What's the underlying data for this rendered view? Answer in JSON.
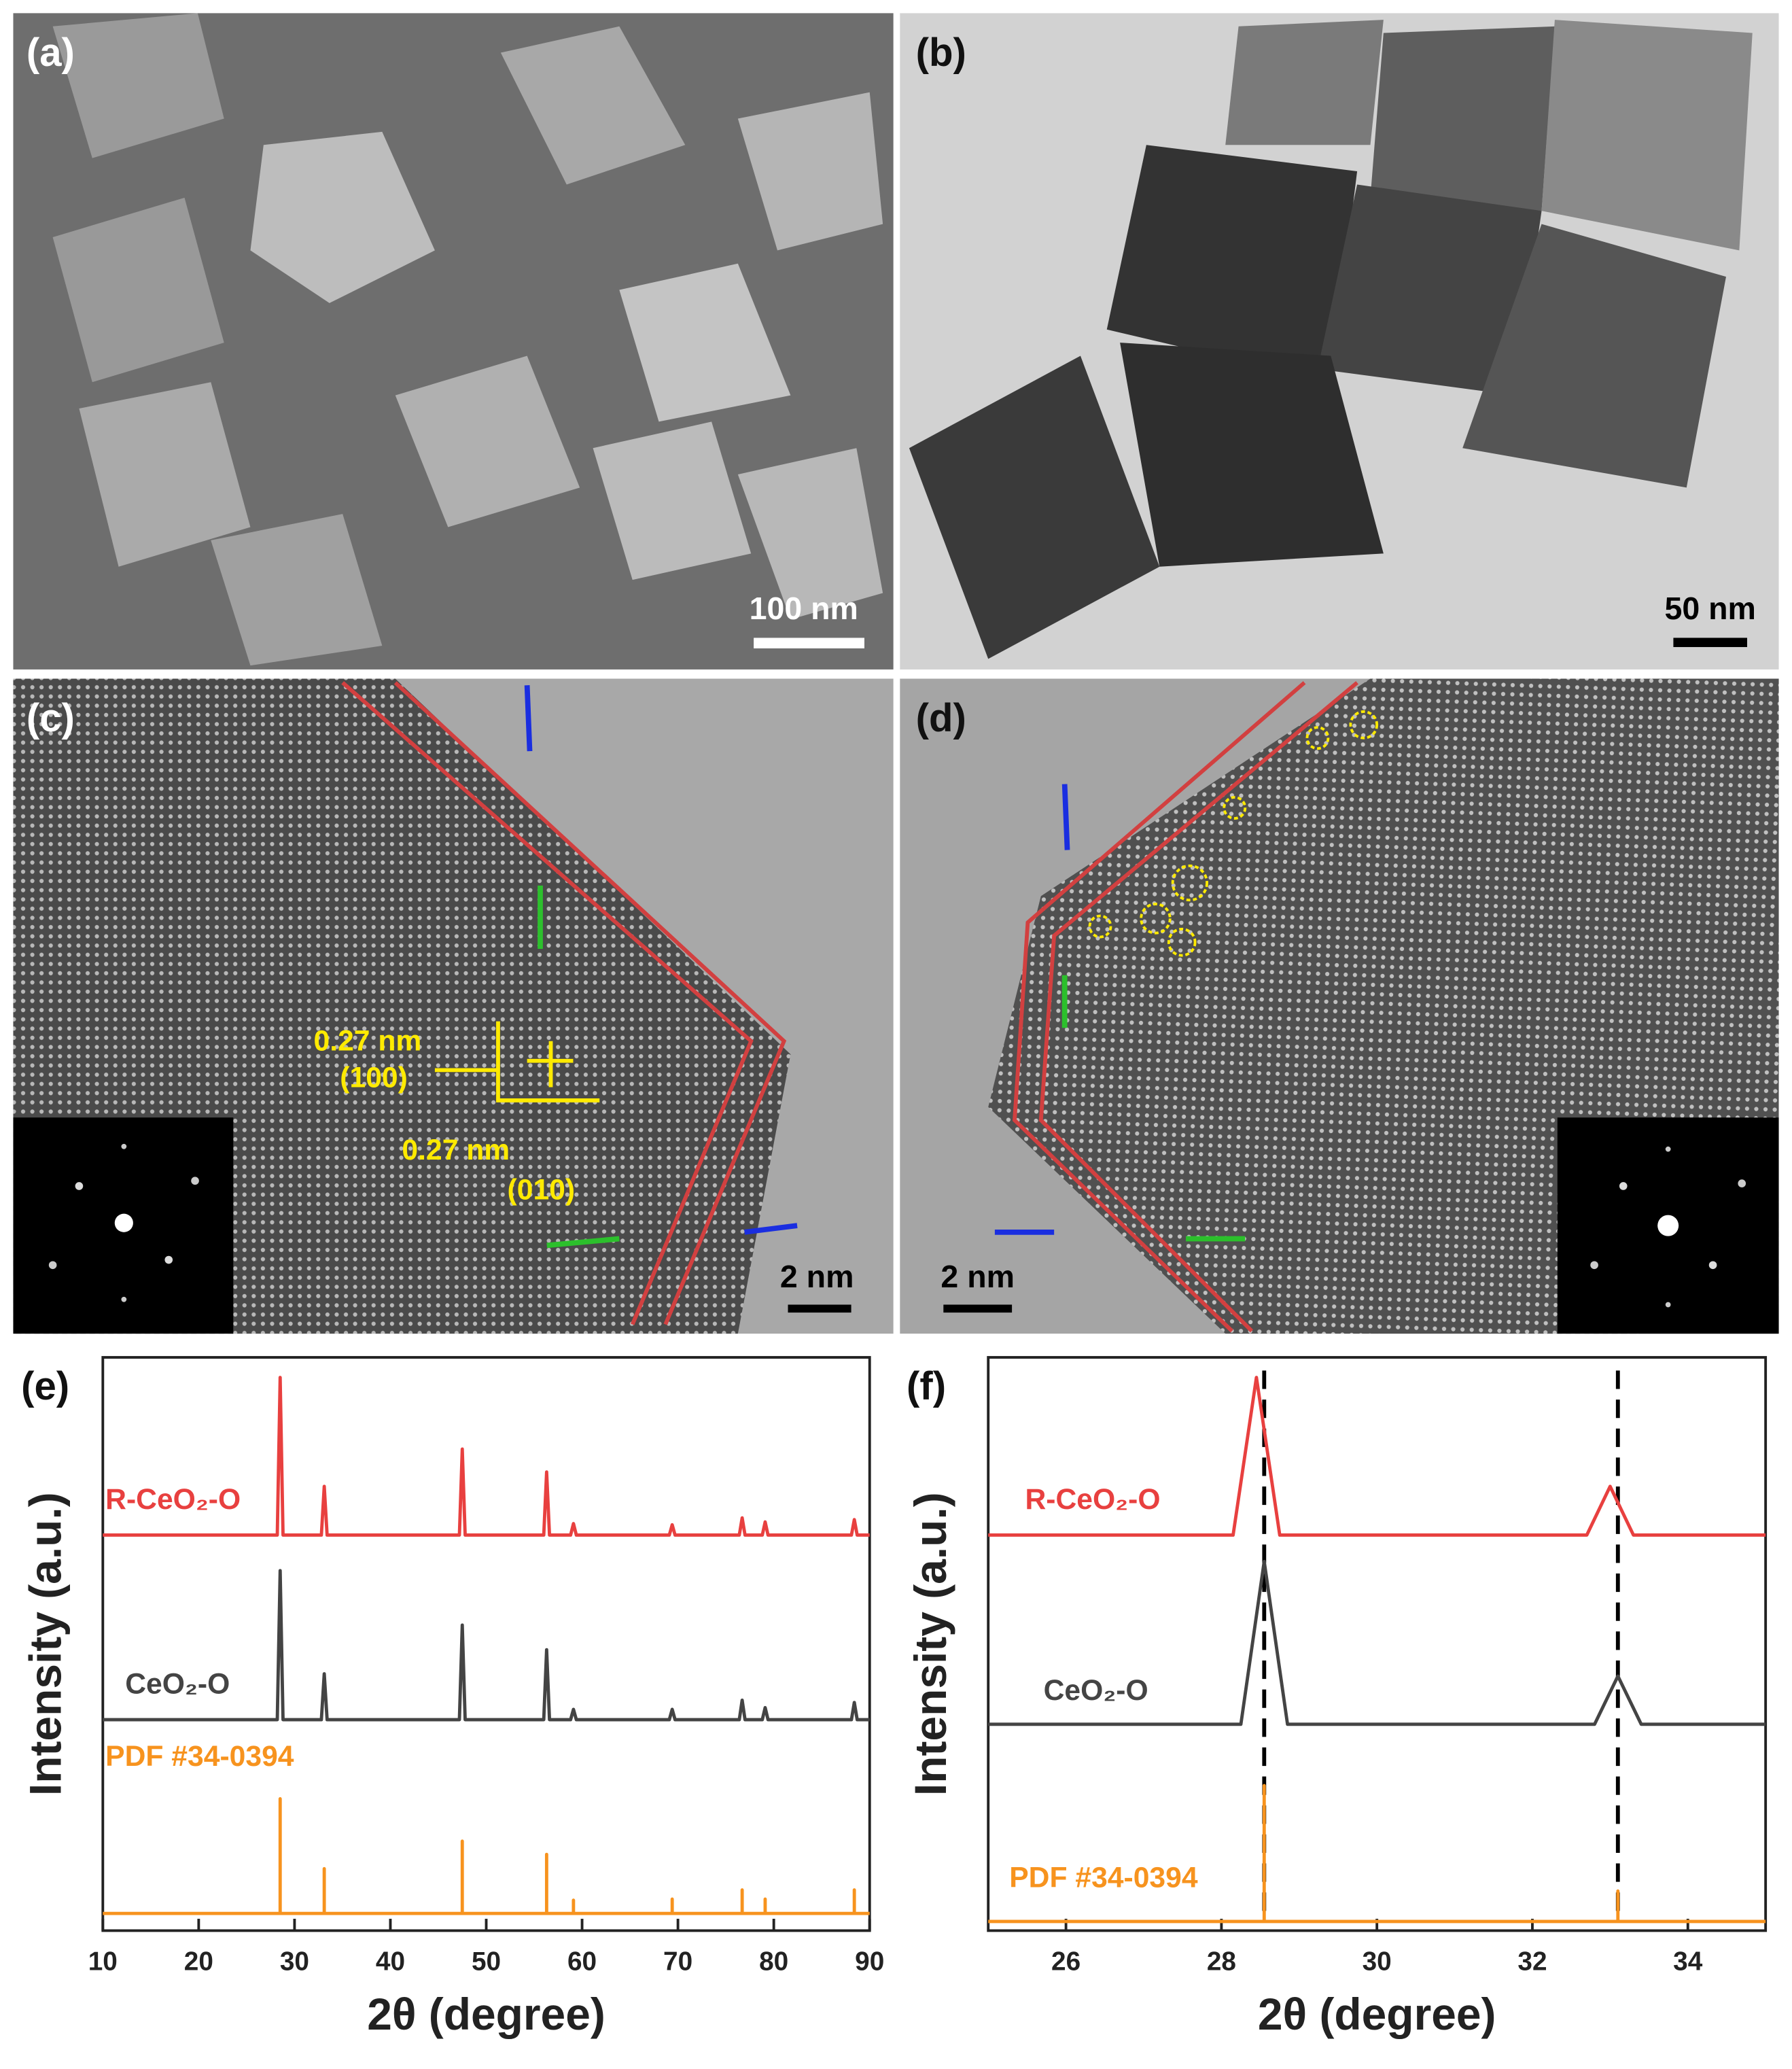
{
  "panels": [
    {
      "label": "(a)",
      "scale_bar": "100 nm"
    },
    {
      "label": "(b)",
      "scale_bar": "50 nm"
    },
    {
      "label": "(c)",
      "scale_bar": "2 nm",
      "annotations": [
        "0.27 nm",
        "(100)",
        "0.27 nm",
        "(010)"
      ]
    },
    {
      "label": "(d)",
      "scale_bar": "2 nm"
    }
  ],
  "chart_data": [
    {
      "type": "line",
      "panel": "(e)",
      "xlabel": "2θ (degree)",
      "ylabel": "Intensity (a.u.)",
      "xlim": [
        10,
        90
      ],
      "xticks": [
        10,
        20,
        30,
        40,
        50,
        60,
        70,
        80,
        90
      ],
      "ylim": [
        0,
        100
      ],
      "series": [
        {
          "name": "R-CeO₂-O",
          "color": "#e8403f",
          "x": [
            10,
            28.2,
            28.5,
            28.8,
            32.8,
            33.1,
            33.4,
            47.2,
            47.5,
            47.8,
            56.0,
            56.3,
            56.6,
            58.8,
            59.1,
            59.4,
            69.1,
            69.4,
            69.7,
            76.4,
            76.7,
            77.0,
            78.8,
            79.1,
            79.4,
            88.1,
            88.4,
            88.7,
            90
          ],
          "values": [
            69,
            69,
            96.5,
            69,
            69,
            77.5,
            69,
            69,
            84,
            69,
            69,
            80,
            69,
            69,
            71,
            69,
            69,
            70.8,
            69,
            69,
            72,
            69,
            69,
            71.3,
            69,
            69,
            71.7,
            69,
            69
          ]
        },
        {
          "name": "CeO₂-O",
          "color": "#444444",
          "x": [
            10,
            28.2,
            28.5,
            28.8,
            32.8,
            33.1,
            33.4,
            47.2,
            47.5,
            47.8,
            56.0,
            56.3,
            56.6,
            58.8,
            59.1,
            59.4,
            69.1,
            69.4,
            69.7,
            76.4,
            76.7,
            77.0,
            78.8,
            79.1,
            79.4,
            88.1,
            88.4,
            88.7,
            90
          ],
          "values": [
            36.8,
            36.8,
            62.8,
            36.8,
            36.8,
            44.8,
            36.8,
            36.8,
            53.3,
            36.8,
            36.8,
            49,
            36.8,
            36.8,
            38.6,
            36.8,
            36.8,
            38.6,
            36.8,
            36.8,
            40.2,
            36.8,
            36.8,
            38.9,
            36.8,
            36.8,
            39.8,
            36.8,
            36.8
          ]
        },
        {
          "name": "PDF #34-0394",
          "color": "#f7931e",
          "x": [
            10,
            28.5,
            28.5,
            28.5,
            33.1,
            33.1,
            33.1,
            47.5,
            47.5,
            47.5,
            56.3,
            56.3,
            56.3,
            59.1,
            59.1,
            59.1,
            69.4,
            69.4,
            69.4,
            76.7,
            76.7,
            76.7,
            79.1,
            79.1,
            79.1,
            88.4,
            88.4,
            88.4,
            90
          ],
          "values": [
            3,
            3,
            23,
            3,
            3,
            10.8,
            3,
            3,
            15.6,
            3,
            3,
            13.3,
            3,
            3,
            5.3,
            3,
            3,
            5.5,
            3,
            3,
            7.1,
            3,
            3,
            5.5,
            3,
            3,
            7.1,
            3,
            3
          ]
        }
      ]
    },
    {
      "type": "line",
      "panel": "(f)",
      "xlabel": "2θ (degree)",
      "ylabel": "Intensity (a.u.)",
      "xlim": [
        25,
        35
      ],
      "xticks": [
        26,
        28,
        30,
        32,
        34
      ],
      "ylim": [
        0,
        100
      ],
      "vlines": [
        28.55,
        33.1
      ],
      "series": [
        {
          "name": "R-CeO₂-O",
          "color": "#e8403f",
          "x": [
            25,
            28.15,
            28.45,
            28.75,
            32.7,
            33.0,
            33.3,
            35
          ],
          "values": [
            69,
            69,
            96.5,
            69,
            69,
            77.5,
            69,
            69
          ]
        },
        {
          "name": "CeO₂-O",
          "color": "#444444",
          "x": [
            25,
            28.25,
            28.55,
            28.85,
            32.8,
            33.1,
            33.4,
            35
          ],
          "values": [
            36,
            36,
            64.4,
            36,
            36,
            44.4,
            36,
            36
          ]
        },
        {
          "name": "PDF #34-0394",
          "color": "#f7931e",
          "x": [
            25,
            28.55,
            28.55,
            28.55,
            33.1,
            33.1,
            33.1,
            35
          ],
          "values": [
            1.6,
            1.6,
            25.3,
            1.6,
            1.6,
            6.9,
            1.6,
            1.6
          ]
        }
      ]
    }
  ]
}
